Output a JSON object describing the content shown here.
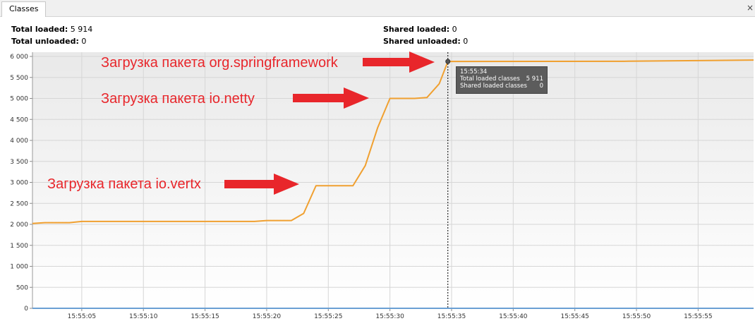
{
  "window": {
    "tab_title": "Classes",
    "close_icon": "×"
  },
  "stats": {
    "total_loaded_label": "Total loaded:",
    "total_loaded_value": "5 914",
    "total_unloaded_label": "Total unloaded:",
    "total_unloaded_value": "0",
    "shared_loaded_label": "Shared loaded:",
    "shared_loaded_value": "0",
    "shared_unloaded_label": "Shared unloaded:",
    "shared_unloaded_value": "0"
  },
  "annotations": {
    "spring": "Загрузка пакета org.springframework",
    "netty": "Загрузка пакета io.netty",
    "vertx": "Загрузка пакета io.vertx"
  },
  "tooltip": {
    "time": "15:55:34",
    "total_label": "Total loaded classes",
    "total_value": "5 911",
    "shared_label": "Shared loaded classes",
    "shared_value": "0"
  },
  "colors": {
    "line": "#f0a030",
    "annotation": "#e8262b",
    "arrow": "#e8262b"
  },
  "chart_data": {
    "type": "line",
    "title": "",
    "xlabel": "",
    "ylabel": "",
    "xlim": [
      0,
      58.5
    ],
    "ylim": [
      0,
      6000
    ],
    "grid": true,
    "marker_x": 33.7,
    "x_ticks": [
      {
        "x": 4,
        "label": "15:55:05"
      },
      {
        "x": 9,
        "label": "15:55:10"
      },
      {
        "x": 14,
        "label": "15:55:15"
      },
      {
        "x": 19,
        "label": "15:55:20"
      },
      {
        "x": 24,
        "label": "15:55:25"
      },
      {
        "x": 29,
        "label": "15:55:30"
      },
      {
        "x": 34,
        "label": "15:55:35"
      },
      {
        "x": 39,
        "label": "15:55:40"
      },
      {
        "x": 44,
        "label": "15:55:45"
      },
      {
        "x": 49,
        "label": "15:55:50"
      },
      {
        "x": 54,
        "label": "15:55:55"
      }
    ],
    "y_ticks": [
      {
        "y": 0,
        "label": "0"
      },
      {
        "y": 500,
        "label": "500"
      },
      {
        "y": 1000,
        "label": "1 000"
      },
      {
        "y": 1500,
        "label": "1 500"
      },
      {
        "y": 2000,
        "label": "2 000"
      },
      {
        "y": 2500,
        "label": "2 500"
      },
      {
        "y": 3000,
        "label": "3 000"
      },
      {
        "y": 3500,
        "label": "3 500"
      },
      {
        "y": 4000,
        "label": "4 000"
      },
      {
        "y": 4500,
        "label": "4 500"
      },
      {
        "y": 5000,
        "label": "5 000"
      },
      {
        "y": 5500,
        "label": "5 500"
      },
      {
        "y": 6000,
        "label": "6 000"
      }
    ],
    "series": [
      {
        "name": "Total loaded classes",
        "x": [
          0,
          1,
          3,
          4,
          6,
          18,
          19,
          21,
          22,
          23,
          26,
          27,
          28,
          29,
          31,
          32,
          33,
          33.7,
          48,
          58.5
        ],
        "y": [
          2020,
          2040,
          2040,
          2070,
          2070,
          2070,
          2090,
          2090,
          2260,
          2920,
          2920,
          3400,
          4300,
          5000,
          5000,
          5020,
          5350,
          5880,
          5885,
          5914
        ]
      },
      {
        "name": "Shared loaded classes",
        "x": [
          0,
          58.5
        ],
        "y": [
          0,
          0
        ]
      }
    ]
  }
}
